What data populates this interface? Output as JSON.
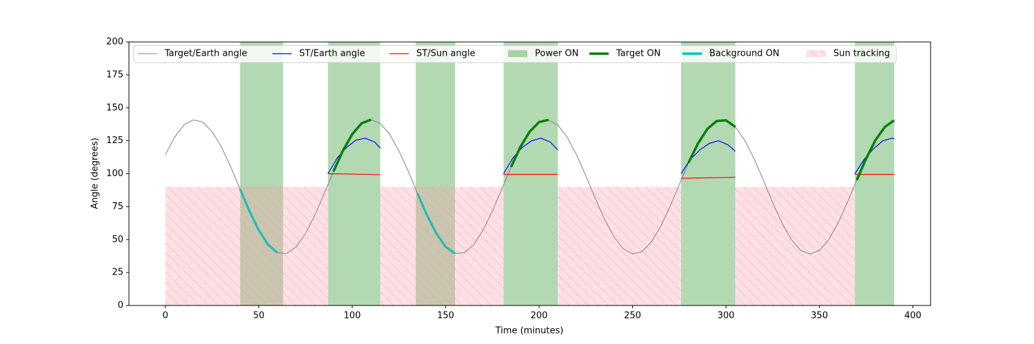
{
  "chart_data": {
    "type": "line",
    "xlabel": "Time (minutes)",
    "ylabel": "Angle (degrees)",
    "xlim": [
      -19.5,
      409.5
    ],
    "ylim": [
      0,
      200
    ],
    "xticks": [
      0,
      50,
      100,
      150,
      200,
      250,
      300,
      350,
      400
    ],
    "yticks": [
      0,
      25,
      50,
      75,
      100,
      125,
      150,
      175,
      200
    ],
    "legend": "upper center",
    "series": [
      {
        "name": "Target/Earth angle",
        "color": "#808080",
        "width": 1,
        "x": [
          0,
          5,
          10,
          15,
          20,
          25,
          30,
          35,
          40,
          45,
          50,
          55,
          60,
          65,
          70,
          75,
          80,
          85,
          90,
          95,
          100,
          105,
          110,
          115,
          120,
          125,
          130,
          135,
          140,
          145,
          150,
          155,
          160,
          165,
          170,
          175,
          180,
          185,
          190,
          195,
          200,
          205,
          210,
          215,
          220,
          225,
          230,
          235,
          240,
          245,
          250,
          255,
          260,
          265,
          270,
          275,
          280,
          285,
          290,
          295,
          300,
          305,
          310,
          315,
          320,
          325,
          330,
          335,
          340,
          345,
          350,
          355,
          360,
          365,
          370,
          375,
          380,
          385,
          390
        ],
        "values": [
          114.5,
          127.8,
          137.0,
          140.9,
          139.2,
          132.0,
          120.3,
          105.1,
          88.3,
          71.6,
          57.1,
          46.1,
          40.0,
          39.5,
          44.5,
          54.6,
          68.5,
          84.9,
          101.8,
          117.5,
          130.0,
          138.2,
          141.0,
          138.2,
          130.0,
          117.4,
          101.8,
          84.8,
          68.5,
          54.6,
          44.5,
          39.5,
          40.0,
          46.1,
          57.1,
          71.6,
          88.3,
          105.1,
          120.3,
          132.0,
          139.2,
          140.9,
          136.9,
          127.8,
          114.5,
          98.5,
          81.5,
          65.5,
          52.2,
          43.1,
          39.1,
          40.8,
          48.0,
          59.8,
          74.9,
          91.7,
          108.4,
          122.9,
          133.9,
          140.0,
          140.5,
          135.5,
          125.5,
          111.5,
          95.1,
          78.2,
          62.5,
          50.0,
          41.8,
          39.0,
          41.8,
          50.0,
          62.6,
          78.3,
          95.2,
          111.5,
          125.5,
          135.5,
          140.5
        ]
      },
      {
        "name": "ST/Earth angle",
        "color": "#0000ff",
        "width": 1.2,
        "x": [
          87,
          92,
          97,
          102,
          107,
          112,
          115,
          null,
          181,
          186,
          191,
          196,
          201,
          206,
          210,
          null,
          276,
          281,
          286,
          291,
          296,
          301,
          305,
          null,
          369,
          374,
          379,
          384,
          389,
          390
        ],
        "values": [
          100,
          112,
          120,
          125.5,
          127,
          124,
          119.5,
          null,
          100,
          112,
          120,
          125,
          127,
          124,
          118,
          null,
          100,
          111,
          118,
          123,
          125,
          122,
          117,
          null,
          100,
          111,
          119,
          125,
          127,
          126.5
        ]
      },
      {
        "name": "ST/Sun angle",
        "color": "#ff0000",
        "width": 1.2,
        "x": [
          87,
          115,
          null,
          181,
          210,
          null,
          276,
          305,
          null,
          369,
          390
        ],
        "values": [
          100,
          99.3,
          null,
          99.5,
          99.5,
          null,
          96.5,
          97.3,
          null,
          99.5,
          99.5
        ]
      },
      {
        "name": "Target ON",
        "color": "#008000",
        "width": 3.5,
        "x": [
          90,
          95,
          100,
          105,
          110,
          null,
          185,
          190,
          195,
          200,
          205,
          null,
          280,
          285,
          290,
          295,
          300,
          305,
          null,
          370,
          375,
          380,
          385,
          390
        ],
        "values": [
          101.8,
          117.5,
          130.0,
          138.2,
          141.0,
          null,
          105.1,
          120.3,
          132.0,
          139.2,
          140.9,
          null,
          108.4,
          122.9,
          133.9,
          140.0,
          140.5,
          135.5,
          null,
          95.2,
          111.5,
          125.5,
          135.5,
          140.5
        ]
      },
      {
        "name": "Background ON",
        "color": "#00bfbf",
        "width": 3.5,
        "x": [
          40,
          45,
          50,
          55,
          60,
          null,
          135,
          140,
          145,
          150,
          155
        ],
        "values": [
          88.3,
          71.6,
          57.1,
          46.1,
          40.0,
          null,
          84.8,
          68.5,
          54.6,
          44.5,
          39.5
        ]
      }
    ],
    "spans": [
      {
        "name": "Power ON",
        "color": "#008000",
        "ranges": [
          [
            40,
            63
          ],
          [
            87,
            115
          ],
          [
            134,
            155
          ],
          [
            181,
            210
          ],
          [
            276,
            305
          ],
          [
            369,
            390
          ]
        ]
      },
      {
        "name": "Sun tracking",
        "color": "#ff9aa8",
        "top": 90,
        "ranges": [
          [
            0,
            87
          ],
          [
            115,
            181
          ],
          [
            210,
            276
          ],
          [
            305,
            369
          ]
        ]
      }
    ]
  }
}
